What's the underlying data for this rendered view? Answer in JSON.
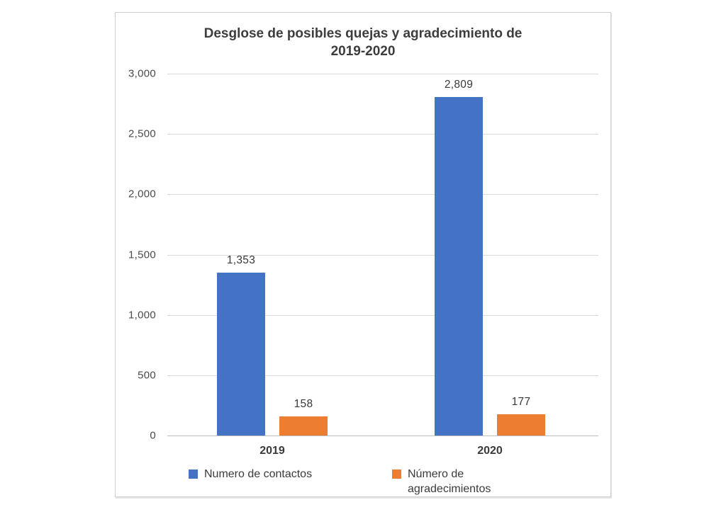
{
  "chart_data": {
    "type": "bar",
    "title": "Desglose de posibles quejas y agradecimiento de 2019-2020",
    "categories": [
      "2019",
      "2020"
    ],
    "series": [
      {
        "name": "Numero de contactos",
        "color": "#4472C4",
        "values": [
          1353,
          2809
        ],
        "labels": [
          "1,353",
          "2,809"
        ]
      },
      {
        "name": "Número de agradecimientos",
        "color": "#ED7D31",
        "values": [
          158,
          177
        ],
        "labels": [
          "158",
          "177"
        ]
      }
    ],
    "xlabel": "",
    "ylabel": "",
    "ylim": [
      0,
      3000
    ],
    "ytick_step": 500,
    "ytick_labels": [
      "0",
      "500",
      "1,000",
      "1,500",
      "2,000",
      "2,500",
      "3,000"
    ],
    "grid": true,
    "legend_position": "bottom",
    "gridline_color": "#d9d9d9",
    "axis_line_color": "#bdbdbd",
    "title_color": "#3d3d3d",
    "tick_label_color": "#4a4a4a"
  }
}
